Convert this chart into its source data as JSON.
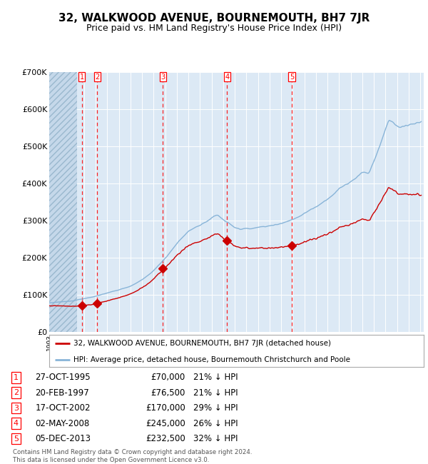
{
  "title": "32, WALKWOOD AVENUE, BOURNEMOUTH, BH7 7JR",
  "subtitle": "Price paid vs. HM Land Registry's House Price Index (HPI)",
  "title_fontsize": 11,
  "subtitle_fontsize": 9,
  "background_color": "#ffffff",
  "plot_bg_color": "#dce9f5",
  "grid_color": "#ffffff",
  "red_line_color": "#cc0000",
  "blue_line_color": "#88b4d8",
  "sale_marker_color": "#cc0000",
  "ylim": [
    0,
    700000
  ],
  "yticks": [
    0,
    100000,
    200000,
    300000,
    400000,
    500000,
    600000,
    700000
  ],
  "ytick_labels": [
    "£0",
    "£100K",
    "£200K",
    "£300K",
    "£400K",
    "£500K",
    "£600K",
    "£700K"
  ],
  "legend_red": "32, WALKWOOD AVENUE, BOURNEMOUTH, BH7 7JR (detached house)",
  "legend_blue": "HPI: Average price, detached house, Bournemouth Christchurch and Poole",
  "sales": [
    {
      "num": 1,
      "date_str": "27-OCT-1995",
      "year": 1995.82,
      "price": 70000,
      "label": "1"
    },
    {
      "num": 2,
      "date_str": "20-FEB-1997",
      "year": 1997.13,
      "price": 76500,
      "label": "2"
    },
    {
      "num": 3,
      "date_str": "17-OCT-2002",
      "year": 2002.8,
      "price": 170000,
      "label": "3"
    },
    {
      "num": 4,
      "date_str": "02-MAY-2008",
      "year": 2008.33,
      "price": 245000,
      "label": "4"
    },
    {
      "num": 5,
      "date_str": "05-DEC-2013",
      "year": 2013.92,
      "price": 232500,
      "label": "5"
    }
  ],
  "footer_text": "Contains HM Land Registry data © Crown copyright and database right 2024.\nThis data is licensed under the Open Government Licence v3.0.",
  "table_rows": [
    [
      "1",
      "27-OCT-1995",
      "£70,000",
      "21% ↓ HPI"
    ],
    [
      "2",
      "20-FEB-1997",
      "£76,500",
      "21% ↓ HPI"
    ],
    [
      "3",
      "17-OCT-2002",
      "£170,000",
      "29% ↓ HPI"
    ],
    [
      "4",
      "02-MAY-2008",
      "£245,000",
      "26% ↓ HPI"
    ],
    [
      "5",
      "05-DEC-2013",
      "£232,500",
      "32% ↓ HPI"
    ]
  ]
}
